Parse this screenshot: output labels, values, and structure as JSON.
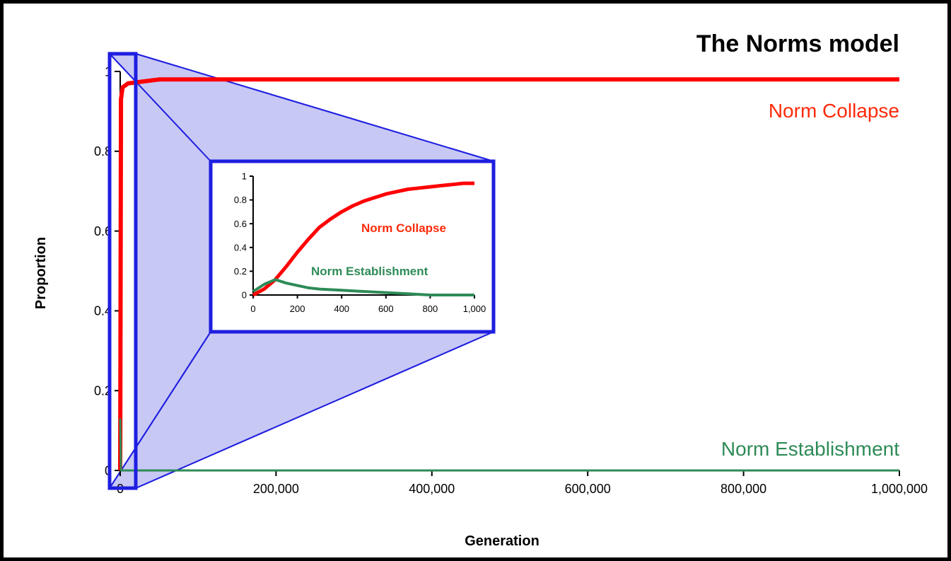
{
  "chart_data": [
    {
      "type": "line",
      "title": "The Norms model",
      "xlabel": "Generation",
      "ylabel": "Proportion",
      "xlim": [
        0,
        1000000
      ],
      "ylim": [
        0,
        1
      ],
      "xticks": [
        "0",
        "200,000",
        "400,000",
        "600,000",
        "800,000",
        "1,000,000"
      ],
      "yticks": [
        "0",
        "0.2",
        "0.4",
        "0.6",
        "0.8",
        "1"
      ],
      "series": [
        {
          "name": "Norm Collapse",
          "color": "#ff0000",
          "x": [
            0,
            1000,
            3000,
            10000,
            50000,
            200000,
            500000,
            800000,
            1000000
          ],
          "values": [
            0,
            0.93,
            0.96,
            0.97,
            0.98,
            0.98,
            0.98,
            0.98,
            0.98
          ]
        },
        {
          "name": "Norm Establishment",
          "color": "#2e8b57",
          "x": [
            0,
            1000,
            3000,
            10000,
            50000,
            200000,
            500000,
            800000,
            1000000
          ],
          "values": [
            0.13,
            0.0,
            0.0,
            0.0,
            0.0,
            0.0,
            0.0,
            0.0,
            0.0
          ]
        }
      ]
    },
    {
      "type": "line",
      "title": "",
      "xlabel": "",
      "ylabel": "",
      "xlim": [
        0,
        1000
      ],
      "ylim": [
        0,
        1
      ],
      "xticks": [
        "0",
        "200",
        "400",
        "600",
        "800",
        "1,000"
      ],
      "yticks": [
        "0",
        "0.2",
        "0.4",
        "0.6",
        "0.8",
        "1"
      ],
      "series": [
        {
          "name": "Norm Collapse",
          "color": "#ff0000",
          "x": [
            0,
            50,
            100,
            150,
            200,
            250,
            300,
            350,
            400,
            450,
            500,
            550,
            600,
            650,
            700,
            750,
            800,
            850,
            900,
            950,
            1000
          ],
          "values": [
            0.0,
            0.05,
            0.13,
            0.24,
            0.36,
            0.47,
            0.57,
            0.64,
            0.7,
            0.75,
            0.79,
            0.82,
            0.85,
            0.87,
            0.89,
            0.9,
            0.91,
            0.92,
            0.93,
            0.94,
            0.94
          ]
        },
        {
          "name": "Norm Establishment",
          "color": "#2e8b57",
          "x": [
            0,
            50,
            100,
            150,
            200,
            250,
            300,
            400,
            500,
            600,
            700,
            800,
            900,
            1000
          ],
          "values": [
            0.03,
            0.09,
            0.13,
            0.1,
            0.08,
            0.06,
            0.05,
            0.04,
            0.03,
            0.02,
            0.01,
            0.0,
            0.0,
            0.0
          ]
        }
      ]
    }
  ]
}
